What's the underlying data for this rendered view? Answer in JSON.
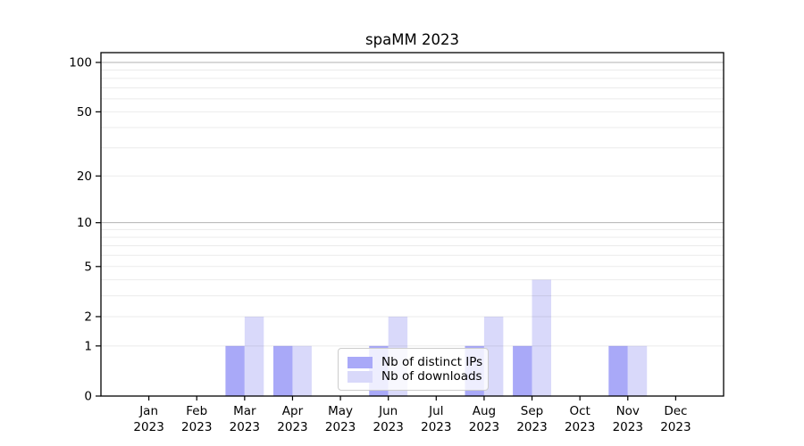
{
  "chart_data": {
    "type": "bar",
    "title": "spaMM 2023",
    "categories": [
      "Jan",
      "Feb",
      "Mar",
      "Apr",
      "May",
      "Jun",
      "Jul",
      "Aug",
      "Sep",
      "Oct",
      "Nov",
      "Dec"
    ],
    "x_year_label": "2023",
    "series": [
      {
        "name": "Nb of distinct IPs",
        "color": "#a9a9f8",
        "values": [
          0,
          0,
          1,
          1,
          0,
          1,
          0,
          1,
          1,
          0,
          1,
          0
        ]
      },
      {
        "name": "Nb of downloads",
        "color": "#d9d9fa",
        "values": [
          0,
          0,
          2,
          1,
          0,
          2,
          0,
          2,
          4,
          0,
          1,
          0
        ]
      }
    ],
    "y_ticks": [
      0,
      1,
      2,
      5,
      10,
      20,
      50,
      100
    ],
    "y_scale": "log10(1+y)",
    "ylim": [
      0,
      115
    ],
    "grid": "on",
    "grid_minor_values": [
      1,
      2,
      3,
      4,
      5,
      6,
      7,
      8,
      9,
      20,
      30,
      40,
      50,
      60,
      70,
      80,
      90
    ],
    "grid_major_values": [
      10,
      100
    ],
    "legend_position": "lower center",
    "colors": {
      "axis": "#000000",
      "grid_minor": "rgba(0,0,0,0.08)",
      "grid_major": "rgba(0,0,0,0.30)",
      "legend_border": "#cccccc"
    }
  }
}
